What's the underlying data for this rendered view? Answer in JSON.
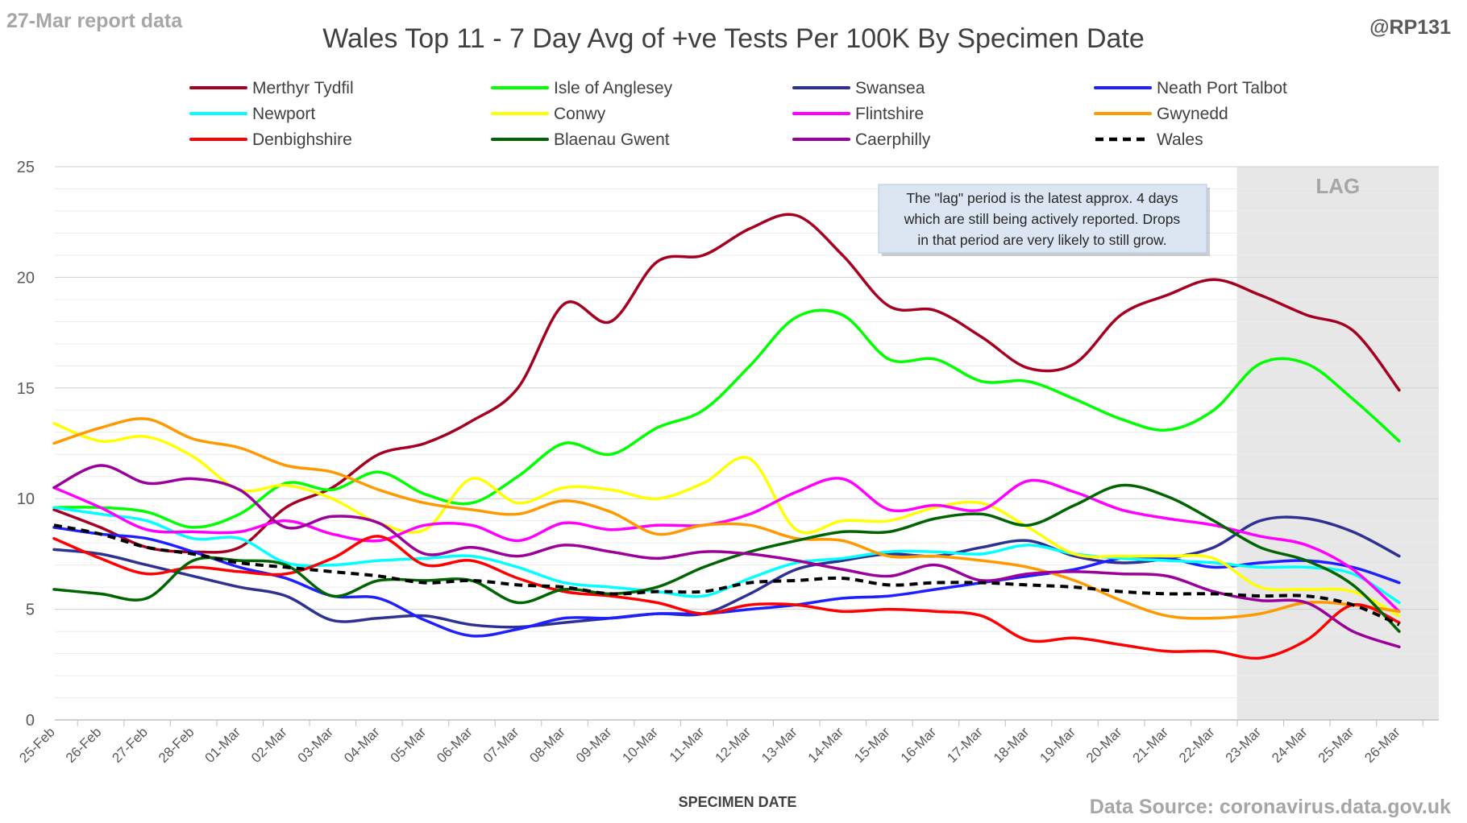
{
  "chart_data": {
    "type": "line",
    "title": "Wales Top 11 - 7 Day Avg of +ve Tests Per 100K By Specimen Date",
    "corner_left": "27-Mar report data",
    "corner_right": "@RP131",
    "source": "Data Source: coronavirus.data.gov.uk",
    "xlabel": "SPECIMEN DATE",
    "ylabel": "",
    "ylim": [
      0,
      25
    ],
    "yticks": [
      "0",
      "5",
      "10",
      "15",
      "20",
      "25"
    ],
    "categories": [
      "25-Feb",
      "26-Feb",
      "27-Feb",
      "28-Feb",
      "01-Mar",
      "02-Mar",
      "03-Mar",
      "04-Mar",
      "05-Mar",
      "06-Mar",
      "07-Mar",
      "08-Mar",
      "09-Mar",
      "10-Mar",
      "11-Mar",
      "12-Mar",
      "13-Mar",
      "14-Mar",
      "15-Mar",
      "16-Mar",
      "17-Mar",
      "18-Mar",
      "19-Mar",
      "20-Mar",
      "21-Mar",
      "22-Mar",
      "23-Mar",
      "24-Mar",
      "25-Mar",
      "26-Mar"
    ],
    "grid": true,
    "legend_position": "top",
    "lag": {
      "label": "LAG",
      "from": "22-Mar",
      "to": "26-Mar"
    },
    "annotation": [
      "The \"lag\" period is the latest approx. 4 days",
      "which are still being actively reported.  Drops",
      "in that period are very likely to still grow."
    ],
    "series": [
      {
        "name": "Merthyr Tydfil",
        "color": "#a50021",
        "dashed": false,
        "values": [
          9.5,
          8.7,
          7.8,
          7.6,
          7.8,
          9.6,
          10.5,
          12.0,
          12.5,
          13.5,
          15.0,
          18.8,
          18.0,
          20.7,
          21.0,
          22.2,
          22.8,
          21.0,
          18.7,
          18.5,
          17.3,
          15.9,
          16.1,
          18.3,
          19.2,
          19.9,
          19.2,
          18.3,
          17.6,
          14.9
        ]
      },
      {
        "name": "Isle of Anglesey",
        "color": "#00ff00",
        "dashed": false,
        "values": [
          9.6,
          9.6,
          9.4,
          8.7,
          9.3,
          10.7,
          10.4,
          11.2,
          10.2,
          9.8,
          11.0,
          12.5,
          12.0,
          13.2,
          14.0,
          16.0,
          18.2,
          18.3,
          16.3,
          16.3,
          15.3,
          15.3,
          14.5,
          13.6,
          13.1,
          14.0,
          16.1,
          16.1,
          14.5,
          12.6
        ]
      },
      {
        "name": "Swansea",
        "color": "#2e3192",
        "dashed": false,
        "values": [
          7.7,
          7.5,
          7.0,
          6.5,
          6.0,
          5.6,
          4.5,
          4.6,
          4.7,
          4.3,
          4.2,
          4.4,
          4.6,
          4.8,
          4.8,
          5.7,
          6.8,
          7.2,
          7.5,
          7.4,
          7.8,
          8.1,
          7.4,
          7.1,
          7.3,
          7.8,
          9.0,
          9.1,
          8.5,
          7.4
        ]
      },
      {
        "name": "Neath Port Talbot",
        "color": "#1f1fff",
        "dashed": false,
        "values": [
          8.7,
          8.4,
          8.2,
          7.6,
          6.9,
          6.4,
          5.6,
          5.5,
          4.5,
          3.8,
          4.1,
          4.6,
          4.6,
          4.8,
          4.8,
          5.0,
          5.2,
          5.5,
          5.6,
          5.9,
          6.2,
          6.5,
          6.8,
          7.3,
          7.3,
          6.9,
          7.1,
          7.2,
          6.9,
          6.2
        ]
      },
      {
        "name": "Newport",
        "color": "#00ffff",
        "dashed": false,
        "values": [
          9.6,
          9.3,
          9.0,
          8.2,
          8.2,
          7.1,
          7.0,
          7.2,
          7.3,
          7.4,
          6.9,
          6.2,
          6.0,
          5.8,
          5.6,
          6.4,
          7.1,
          7.3,
          7.6,
          7.6,
          7.5,
          7.9,
          7.5,
          7.3,
          7.2,
          7.1,
          6.9,
          6.9,
          6.6,
          5.3
        ]
      },
      {
        "name": "Conwy",
        "color": "#ffff00",
        "dashed": false,
        "values": [
          13.4,
          12.6,
          12.8,
          11.9,
          10.4,
          10.6,
          10.0,
          8.9,
          8.6,
          10.9,
          9.8,
          10.5,
          10.4,
          10.0,
          10.7,
          11.8,
          8.6,
          9.0,
          9.0,
          9.6,
          9.8,
          8.7,
          7.5,
          7.4,
          7.4,
          7.3,
          6.0,
          5.9,
          5.8,
          4.7
        ]
      },
      {
        "name": "Flintshire",
        "color": "#ff00ff",
        "dashed": false,
        "values": [
          10.5,
          9.6,
          8.6,
          8.5,
          8.5,
          9.0,
          8.4,
          8.1,
          8.8,
          8.8,
          8.1,
          8.9,
          8.6,
          8.8,
          8.8,
          9.3,
          10.3,
          10.9,
          9.5,
          9.7,
          9.5,
          10.8,
          10.3,
          9.5,
          9.1,
          8.8,
          8.3,
          7.9,
          6.8,
          4.9
        ]
      },
      {
        "name": "Gwynedd",
        "color": "#ff9900",
        "dashed": false,
        "values": [
          12.5,
          13.2,
          13.6,
          12.7,
          12.3,
          11.5,
          11.2,
          10.4,
          9.8,
          9.5,
          9.3,
          9.9,
          9.4,
          8.4,
          8.8,
          8.8,
          8.2,
          8.1,
          7.4,
          7.4,
          7.2,
          6.9,
          6.3,
          5.4,
          4.7,
          4.6,
          4.8,
          5.3,
          5.2,
          4.9
        ]
      },
      {
        "name": "Denbighshire",
        "color": "#ff0000",
        "dashed": false,
        "values": [
          8.2,
          7.3,
          6.6,
          6.9,
          6.7,
          6.6,
          7.3,
          8.3,
          7.0,
          7.2,
          6.4,
          5.8,
          5.6,
          5.3,
          4.8,
          5.2,
          5.2,
          4.9,
          5.0,
          4.9,
          4.7,
          3.6,
          3.7,
          3.4,
          3.1,
          3.1,
          2.8,
          3.6,
          5.2,
          4.4
        ]
      },
      {
        "name": "Blaenau Gwent",
        "color": "#006400",
        "dashed": false,
        "values": [
          5.9,
          5.7,
          5.5,
          7.2,
          7.2,
          7.0,
          5.6,
          6.3,
          6.3,
          6.3,
          5.3,
          5.9,
          5.7,
          6.0,
          6.9,
          7.6,
          8.1,
          8.5,
          8.5,
          9.1,
          9.3,
          8.8,
          9.7,
          10.6,
          10.1,
          9.0,
          7.8,
          7.2,
          6.1,
          4.0
        ]
      },
      {
        "name": "Caerphilly",
        "color": "#9b009b",
        "dashed": false,
        "values": [
          10.5,
          11.5,
          10.7,
          10.9,
          10.4,
          8.7,
          9.2,
          8.9,
          7.5,
          7.8,
          7.4,
          7.9,
          7.6,
          7.3,
          7.6,
          7.5,
          7.2,
          6.8,
          6.5,
          7.0,
          6.3,
          6.6,
          6.7,
          6.6,
          6.5,
          5.8,
          5.4,
          5.3,
          4.0,
          3.3
        ]
      },
      {
        "name": "Wales",
        "color": "#000000",
        "dashed": true,
        "values": [
          8.8,
          8.4,
          7.8,
          7.5,
          7.1,
          6.9,
          6.7,
          6.5,
          6.2,
          6.3,
          6.1,
          6.0,
          5.7,
          5.8,
          5.8,
          6.2,
          6.3,
          6.4,
          6.1,
          6.2,
          6.2,
          6.1,
          6.0,
          5.8,
          5.7,
          5.7,
          5.6,
          5.6,
          5.2,
          4.3
        ]
      }
    ]
  }
}
